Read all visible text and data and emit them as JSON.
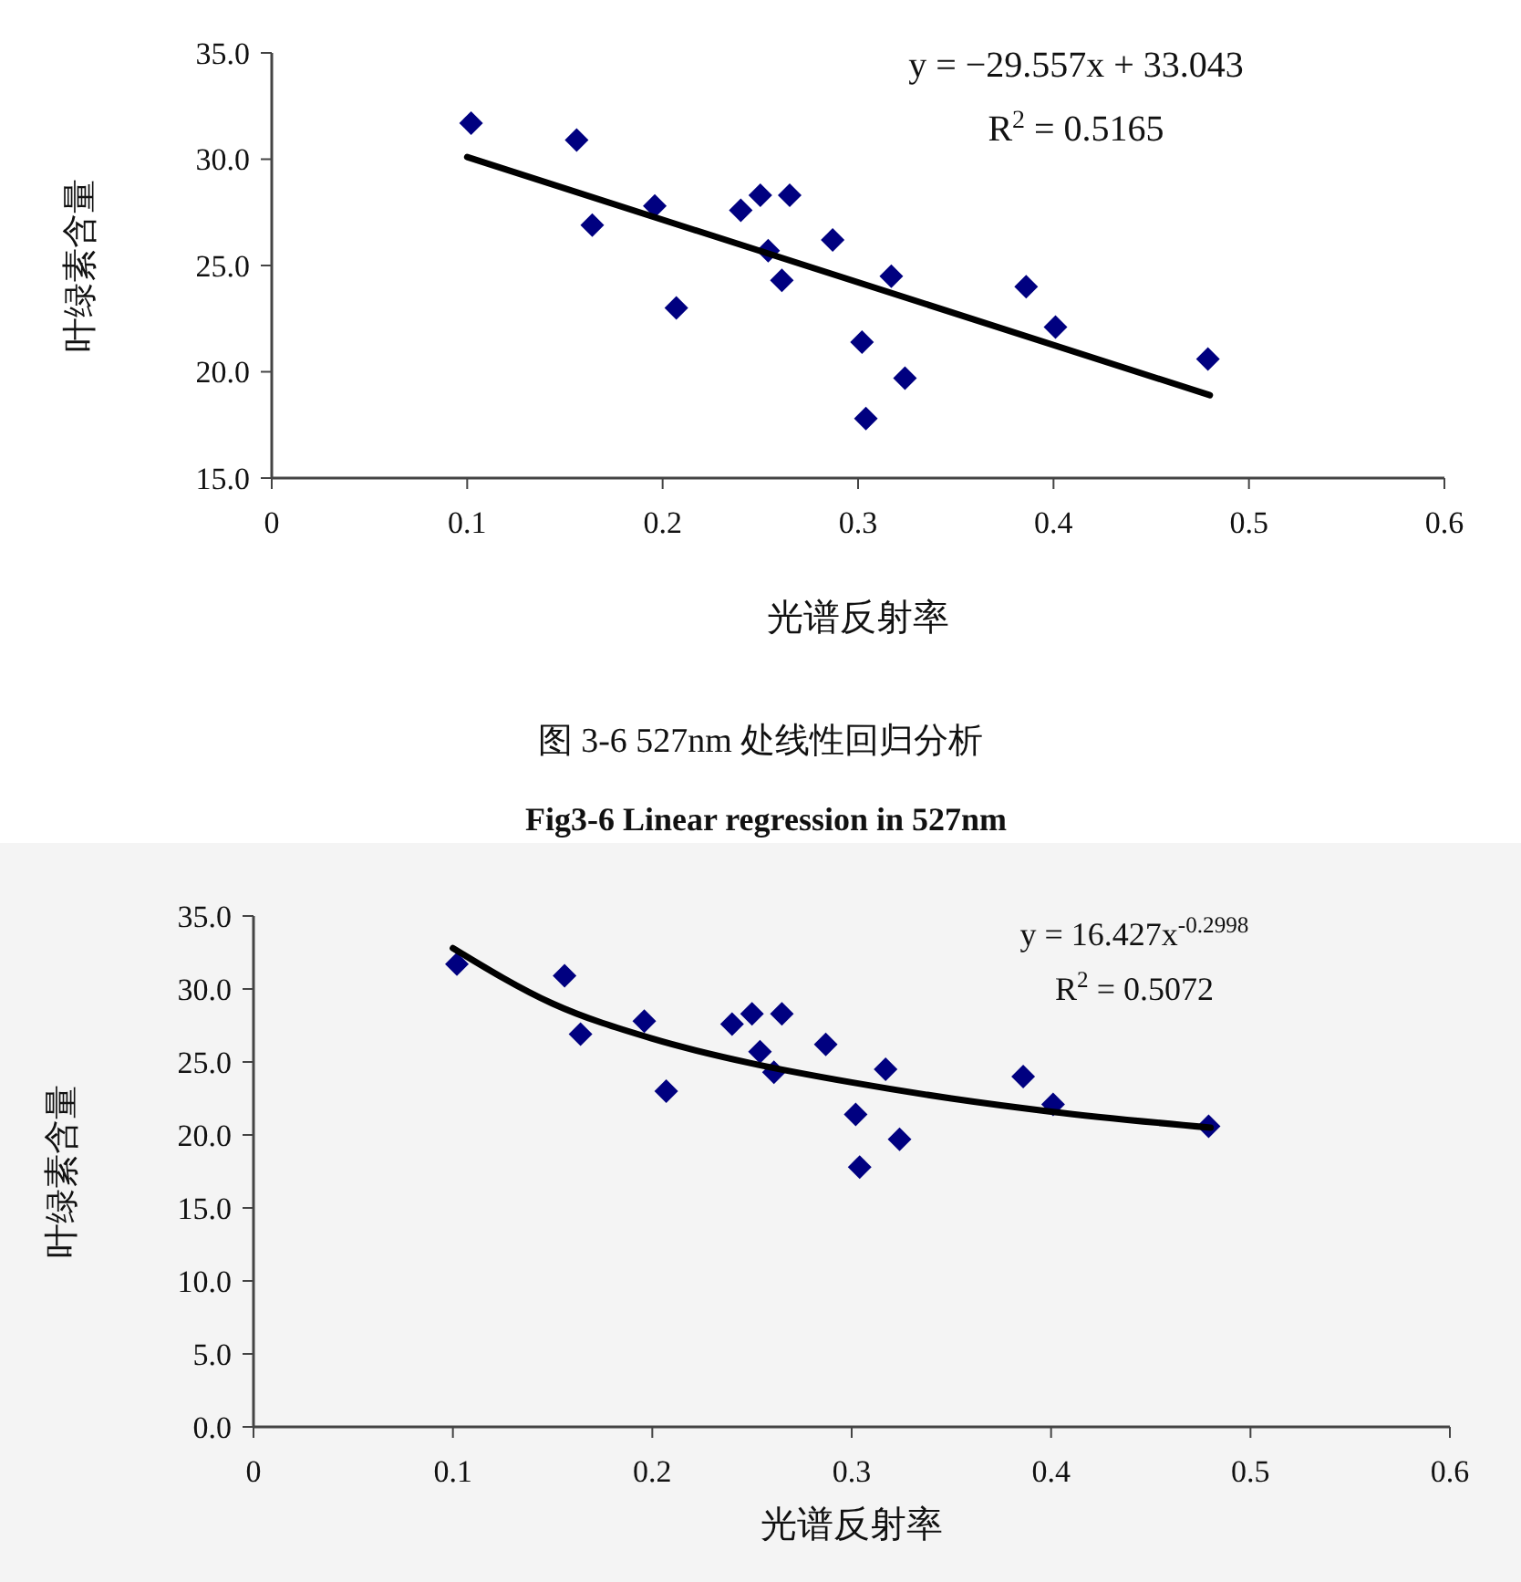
{
  "chart_data": [
    {
      "type": "scatter",
      "xlabel": "光谱反射率",
      "ylabel": "叶绿素含量",
      "xlim": [
        0,
        0.6
      ],
      "ylim": [
        15,
        35
      ],
      "xticks": [
        0,
        0.1,
        0.2,
        0.3,
        0.4,
        0.5,
        0.6
      ],
      "yticks": [
        {
          "value": 15,
          "label": "15.0"
        },
        {
          "value": 20,
          "label": "20.0"
        },
        {
          "value": 25,
          "label": "25.0"
        },
        {
          "value": 30,
          "label": "30.0"
        },
        {
          "value": 35,
          "label": "35.0"
        }
      ],
      "annotations": [
        "y = −29.557x + 33.043",
        "R$^{2}$ = 0.5165",
        "图 3-6 527nm 处线性回归分析",
        "Fig3-6 Linear regression in 527nm"
      ],
      "series": [
        {
          "type": "scatter",
          "marker": "diamond",
          "color": "#000080",
          "x": [
            0.102,
            0.156,
            0.164,
            0.196,
            0.207,
            0.24,
            0.25,
            0.254,
            0.261,
            0.265,
            0.287,
            0.302,
            0.304,
            0.317,
            0.324,
            0.386,
            0.401,
            0.479
          ],
          "values": [
            31.7,
            30.9,
            26.9,
            27.8,
            23.0,
            27.6,
            28.3,
            25.7,
            24.3,
            28.3,
            26.2,
            21.4,
            17.8,
            24.5,
            19.7,
            24.0,
            22.1,
            20.6
          ]
        },
        {
          "type": "line",
          "marker": "none",
          "color": "#000000",
          "x": [
            0.1,
            0.48
          ],
          "values": [
            30.1,
            18.9
          ]
        }
      ]
    },
    {
      "type": "scatter",
      "xlabel": "光谱反射率",
      "ylabel": "叶绿素含量",
      "xlim": [
        0,
        0.6
      ],
      "ylim": [
        0,
        35
      ],
      "xticks": [
        0,
        0.1,
        0.2,
        0.3,
        0.4,
        0.5,
        0.6
      ],
      "yticks": [
        {
          "value": 0,
          "label": "0.0"
        },
        {
          "value": 5,
          "label": "5.0"
        },
        {
          "value": 10,
          "label": "10.0"
        },
        {
          "value": 15,
          "label": "15.0"
        },
        {
          "value": 20,
          "label": "20.0"
        },
        {
          "value": 25,
          "label": "25.0"
        },
        {
          "value": 30,
          "label": "30.0"
        },
        {
          "value": 35,
          "label": "35.0"
        }
      ],
      "annotations": [
        "y = 16.427x$^{-0.2998}$",
        "R$^{2}$ = 0.5072"
      ],
      "series": [
        {
          "type": "scatter",
          "marker": "diamond",
          "color": "#000080",
          "x": [
            0.102,
            0.156,
            0.164,
            0.196,
            0.207,
            0.24,
            0.25,
            0.254,
            0.261,
            0.265,
            0.287,
            0.302,
            0.304,
            0.317,
            0.324,
            0.386,
            0.401,
            0.479
          ],
          "values": [
            31.7,
            30.9,
            26.9,
            27.8,
            23.0,
            27.6,
            28.3,
            25.7,
            24.3,
            28.3,
            26.2,
            21.4,
            17.8,
            24.5,
            19.7,
            24.0,
            22.1,
            20.6
          ]
        },
        {
          "type": "line",
          "marker": "none",
          "color": "#000000",
          "x": [
            0.1,
            0.15,
            0.2,
            0.25,
            0.3,
            0.35,
            0.4,
            0.48
          ],
          "values": [
            32.8,
            29.0,
            26.6,
            24.9,
            23.6,
            22.5,
            21.6,
            20.5
          ]
        }
      ]
    }
  ]
}
